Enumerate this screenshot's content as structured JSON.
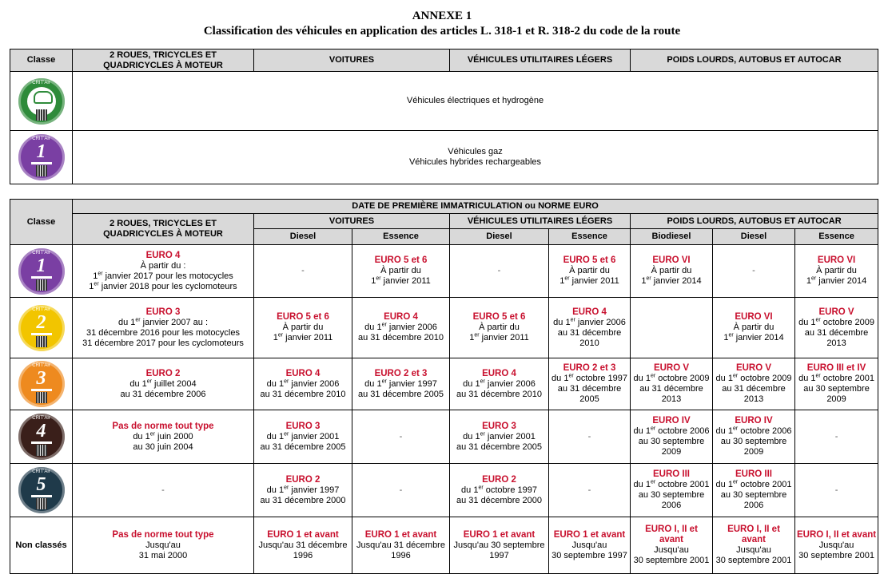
{
  "title": "ANNEXE 1",
  "subtitle": "Classification des véhicules en application des articles L. 318-1 et R. 318-2 du code de la route",
  "table1": {
    "headers": [
      "Classe",
      "2 ROUES, TRICYCLES ET QUADRICYCLES À MOTEUR",
      "VOITURES",
      "VÉHICULES UTILITAIRES LÉGERS",
      "POIDS LOURDS, AUTOBUS ET AUTOCAR"
    ],
    "rows": [
      {
        "badge": {
          "label": "CRIT'Air",
          "number": "",
          "color": "#2e8b3a",
          "icon": "electric-car-icon"
        },
        "lines": [
          "Véhicules électriques et hydrogène"
        ]
      },
      {
        "badge": {
          "label": "CRIT'Air",
          "number": "1",
          "color": "#7a3fa3"
        },
        "lines": [
          "Véhicules gaz",
          "Véhicules hybrides rechargeables"
        ]
      }
    ]
  },
  "table2": {
    "classe": "Classe",
    "date_header": "DATE DE PREMIÈRE IMMATRICULATION ou NORME EURO",
    "groups": [
      "2 ROUES, TRICYCLES ET QUADRICYCLES À MOTEUR",
      "VOITURES",
      "VÉHICULES UTILITAIRES LÉGERS",
      "POIDS LOURDS, AUTOBUS ET AUTOCAR"
    ],
    "subheaders": [
      "Diesel",
      "Essence",
      "Diesel",
      "Essence",
      "Biodiesel",
      "Diesel",
      "Essence"
    ],
    "rows": [
      {
        "badge": {
          "label": "CRIT'Air",
          "number": "1",
          "color": "#7a3fa3"
        },
        "cells": [
          {
            "euro": "EURO 4",
            "lines": [
              "À partir du :",
              "1er janvier 2017 pour les motocycles",
              "1er janvier 2018 pour les cyclomoteurs"
            ]
          },
          {
            "euro": "",
            "lines": [
              "-"
            ]
          },
          {
            "euro": "EURO 5 et 6",
            "lines": [
              "À partir du",
              "1er janvier 2011"
            ]
          },
          {
            "euro": "",
            "lines": [
              "-"
            ]
          },
          {
            "euro": "EURO 5 et 6",
            "lines": [
              "À partir du",
              "1er janvier 2011"
            ]
          },
          {
            "euro": "EURO VI",
            "lines": [
              "À partir du",
              "1er janvier 2014"
            ]
          },
          {
            "euro": "",
            "lines": [
              "-"
            ]
          },
          {
            "euro": "EURO VI",
            "lines": [
              "À partir du",
              "1er janvier 2014"
            ]
          }
        ]
      },
      {
        "badge": {
          "label": "CRIT'Air",
          "number": "2",
          "color": "#f2c500"
        },
        "cells": [
          {
            "euro": "EURO 3",
            "lines": [
              "du 1er janvier 2007 au :",
              "31 décembre 2016 pour les motocycles",
              "31 décembre 2017 pour les cyclomoteurs"
            ]
          },
          {
            "euro": "EURO 5 et 6",
            "lines": [
              "À partir du",
              "1er janvier 2011"
            ]
          },
          {
            "euro": "EURO 4",
            "lines": [
              "du 1er janvier 2006",
              "au 31 décembre 2010"
            ]
          },
          {
            "euro": "EURO 5 et 6",
            "lines": [
              "À partir du",
              "1er janvier 2011"
            ]
          },
          {
            "euro": "EURO 4",
            "lines": [
              "du 1er janvier 2006",
              "au 31 décembre",
              "2010"
            ]
          },
          {
            "euro": "",
            "lines": []
          },
          {
            "euro": "EURO VI",
            "lines": [
              "À partir du",
              "1er janvier 2014"
            ]
          },
          {
            "euro": "EURO V",
            "lines": [
              "du 1er octobre 2009",
              "au 31 décembre",
              "2013"
            ]
          }
        ]
      },
      {
        "badge": {
          "label": "CRIT'Air",
          "number": "3",
          "color": "#ee8a1f"
        },
        "cells": [
          {
            "euro": "EURO 2",
            "lines": [
              "du 1er juillet 2004",
              "au 31 décembre 2006"
            ]
          },
          {
            "euro": "EURO 4",
            "lines": [
              "du 1er janvier 2006",
              "au 31 décembre 2010"
            ]
          },
          {
            "euro": "EURO 2 et 3",
            "lines": [
              "du 1er janvier 1997",
              "au 31 décembre 2005"
            ]
          },
          {
            "euro": "EURO 4",
            "lines": [
              "du 1er janvier 2006",
              "au 31 décembre 2010"
            ]
          },
          {
            "euro": "EURO 2 et 3",
            "lines": [
              "du 1er octobre 1997",
              "au 31 décembre",
              "2005"
            ]
          },
          {
            "euro": "EURO V",
            "lines": [
              "du 1er octobre 2009",
              "au 31 décembre",
              "2013"
            ]
          },
          {
            "euro": "EURO V",
            "lines": [
              "du 1er octobre 2009",
              "au 31 décembre",
              "2013"
            ]
          },
          {
            "euro": "EURO III et IV",
            "lines": [
              "du 1er octobre 2001",
              "au 30 septembre",
              "2009"
            ]
          }
        ]
      },
      {
        "badge": {
          "label": "CRIT'Air",
          "number": "4",
          "color": "#3a1f1a"
        },
        "cells": [
          {
            "euro": "Pas de norme tout type",
            "lines": [
              "du 1er juin 2000",
              "au 30 juin 2004"
            ]
          },
          {
            "euro": "EURO 3",
            "lines": [
              "du 1er janvier 2001",
              "au 31 décembre 2005"
            ]
          },
          {
            "euro": "",
            "lines": [
              "-"
            ]
          },
          {
            "euro": "EURO 3",
            "lines": [
              "du 1er janvier 2001",
              "au 31 décembre 2005"
            ]
          },
          {
            "euro": "",
            "lines": [
              "-"
            ]
          },
          {
            "euro": "EURO IV",
            "lines": [
              "du 1er octobre 2006",
              "au 30 septembre",
              "2009"
            ]
          },
          {
            "euro": "EURO IV",
            "lines": [
              "du 1er octobre 2006",
              "au 30 septembre",
              "2009"
            ]
          },
          {
            "euro": "",
            "lines": [
              "-"
            ]
          }
        ]
      },
      {
        "badge": {
          "label": "CRIT'Air",
          "number": "5",
          "color": "#1f3a4a"
        },
        "cells": [
          {
            "euro": "",
            "lines": [
              "-"
            ]
          },
          {
            "euro": "EURO 2",
            "lines": [
              "du 1er janvier 1997",
              "au 31 décembre 2000"
            ]
          },
          {
            "euro": "",
            "lines": [
              "-"
            ]
          },
          {
            "euro": "EURO 2",
            "lines": [
              "du 1er octobre 1997",
              "au 31 décembre 2000"
            ]
          },
          {
            "euro": "",
            "lines": [
              "-"
            ]
          },
          {
            "euro": "EURO III",
            "lines": [
              "du 1er octobre 2001",
              "au 30 septembre",
              "2006"
            ]
          },
          {
            "euro": "EURO III",
            "lines": [
              "du 1er octobre 2001",
              "au 30 septembre",
              "2006"
            ]
          },
          {
            "euro": "",
            "lines": [
              "-"
            ]
          }
        ]
      },
      {
        "label": "Non classés",
        "cells": [
          {
            "euro": "Pas de norme tout type",
            "lines": [
              "Jusqu'au",
              "31 mai 2000"
            ]
          },
          {
            "euro": "EURO 1 et avant",
            "lines": [
              "Jusqu'au 31 décembre",
              "1996"
            ]
          },
          {
            "euro": "EURO 1 et avant",
            "lines": [
              "Jusqu'au 31 décembre",
              "1996"
            ]
          },
          {
            "euro": "EURO 1 et avant",
            "lines": [
              "Jusqu'au 30 septembre",
              "1997"
            ]
          },
          {
            "euro": "EURO 1 et avant",
            "lines": [
              "Jusqu'au",
              "30 septembre 1997"
            ]
          },
          {
            "euro": "EURO I, II et avant",
            "lines": [
              "Jusqu'au",
              "30 septembre 2001"
            ]
          },
          {
            "euro": "EURO I, II et avant",
            "lines": [
              "Jusqu'au",
              "30 septembre 2001"
            ]
          },
          {
            "euro": "EURO I, II et avant",
            "lines": [
              "Jusqu'au",
              "30 septembre 2001"
            ]
          }
        ]
      }
    ]
  }
}
